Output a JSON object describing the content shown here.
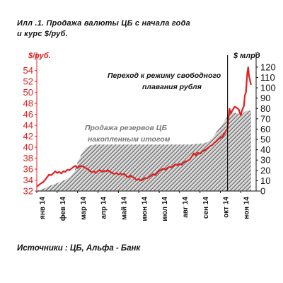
{
  "title": {
    "line1": "Илл .1.   Продажа валюты ЦБ с начала года",
    "line2": "и курс $/руб."
  },
  "source": "Источники : ЦБ, Альфа - Банк",
  "colors": {
    "rate_line": "#e02020",
    "reserves_area": "#808080",
    "float_marker": "#111111"
  },
  "chart_data": {
    "type": "area",
    "left_axis": {
      "unit": "$/руб.",
      "ticks": [
        "32",
        "34",
        "36",
        "38",
        "40",
        "42",
        "44",
        "46",
        "48",
        "50",
        "52",
        "54"
      ],
      "ylim": [
        32,
        55
      ]
    },
    "right_axis": {
      "unit": "$ млрд",
      "ticks": [
        "0",
        "10",
        "20",
        "30",
        "40",
        "50",
        "60",
        "70",
        "80",
        "90",
        "100",
        "110",
        "120"
      ],
      "ylim": [
        0,
        122
      ]
    },
    "x_labels": [
      "янв 14",
      "фев 14",
      "мар 14",
      "апр 14",
      "май 14",
      "июн 14",
      "июл 14",
      "авг 14",
      "сен 14",
      "окт 14",
      "ноя 14"
    ],
    "x_range": [
      0,
      10.75
    ],
    "annotations": {
      "float_regime": "Переход к режиму свободного плавания рубля",
      "float_regime_line1": "Переход к режиму свободного",
      "float_regime_line2": "плавания рубля",
      "float_regime_x": 9.35,
      "reserves_label_line1": "Продажа резервов ЦБ",
      "reserves_label_line2": "накопленным итогом"
    },
    "series": [
      {
        "name": "$/руб.",
        "axis": "left",
        "style": "line",
        "points": [
          [
            0.0,
            32.8
          ],
          [
            0.1,
            33.1
          ],
          [
            0.2,
            33.4
          ],
          [
            0.3,
            33.6
          ],
          [
            0.4,
            34.0
          ],
          [
            0.5,
            34.5
          ],
          [
            0.6,
            35.0
          ],
          [
            0.7,
            34.9
          ],
          [
            0.8,
            35.2
          ],
          [
            0.9,
            35.6
          ],
          [
            1.0,
            35.3
          ],
          [
            1.1,
            35.5
          ],
          [
            1.2,
            35.2
          ],
          [
            1.3,
            35.6
          ],
          [
            1.4,
            35.5
          ],
          [
            1.5,
            35.9
          ],
          [
            1.6,
            35.8
          ],
          [
            1.7,
            36.1
          ],
          [
            1.8,
            36.4
          ],
          [
            1.9,
            36.6
          ],
          [
            2.0,
            36.2
          ],
          [
            2.1,
            36.5
          ],
          [
            2.2,
            36.6
          ],
          [
            2.3,
            36.4
          ],
          [
            2.4,
            36.2
          ],
          [
            2.5,
            36.0
          ],
          [
            2.6,
            35.7
          ],
          [
            2.7,
            35.4
          ],
          [
            2.8,
            35.6
          ],
          [
            2.9,
            35.3
          ],
          [
            3.0,
            35.7
          ],
          [
            3.1,
            35.8
          ],
          [
            3.2,
            35.5
          ],
          [
            3.3,
            35.7
          ],
          [
            3.4,
            35.6
          ],
          [
            3.5,
            35.8
          ],
          [
            3.6,
            35.5
          ],
          [
            3.7,
            35.3
          ],
          [
            3.8,
            35.1
          ],
          [
            3.9,
            35.3
          ],
          [
            4.0,
            35.0
          ],
          [
            4.1,
            35.2
          ],
          [
            4.2,
            35.0
          ],
          [
            4.3,
            35.1
          ],
          [
            4.4,
            34.7
          ],
          [
            4.5,
            34.5
          ],
          [
            4.6,
            34.8
          ],
          [
            4.7,
            34.6
          ],
          [
            4.8,
            34.3
          ],
          [
            4.9,
            34.0
          ],
          [
            5.0,
            34.2
          ],
          [
            5.1,
            33.9
          ],
          [
            5.2,
            34.1
          ],
          [
            5.3,
            34.4
          ],
          [
            5.4,
            34.3
          ],
          [
            5.5,
            34.6
          ],
          [
            5.6,
            34.8
          ],
          [
            5.7,
            35.1
          ],
          [
            5.8,
            34.9
          ],
          [
            5.9,
            35.3
          ],
          [
            6.0,
            35.7
          ],
          [
            6.1,
            35.9
          ],
          [
            6.2,
            36.1
          ],
          [
            6.3,
            35.9
          ],
          [
            6.4,
            36.2
          ],
          [
            6.5,
            36.4
          ],
          [
            6.6,
            36.3
          ],
          [
            6.7,
            36.6
          ],
          [
            6.8,
            36.9
          ],
          [
            6.9,
            36.7
          ],
          [
            7.0,
            37.0
          ],
          [
            7.1,
            36.8
          ],
          [
            7.2,
            37.2
          ],
          [
            7.3,
            37.4
          ],
          [
            7.4,
            37.5
          ],
          [
            7.5,
            37.8
          ],
          [
            7.6,
            38.3
          ],
          [
            7.7,
            38.9
          ],
          [
            7.8,
            38.5
          ],
          [
            7.9,
            39.0
          ],
          [
            8.0,
            38.8
          ],
          [
            8.1,
            39.2
          ],
          [
            8.2,
            39.4
          ],
          [
            8.3,
            39.6
          ],
          [
            8.4,
            39.9
          ],
          [
            8.5,
            40.2
          ],
          [
            8.6,
            40.4
          ],
          [
            8.7,
            40.8
          ],
          [
            8.8,
            41.1
          ],
          [
            8.9,
            41.5
          ],
          [
            9.0,
            41.7
          ],
          [
            9.1,
            41.9
          ],
          [
            9.2,
            42.5
          ],
          [
            9.3,
            43.2
          ],
          [
            9.35,
            43.3
          ],
          [
            9.4,
            45.5
          ],
          [
            9.45,
            47.0
          ],
          [
            9.5,
            46.2
          ],
          [
            9.6,
            46.8
          ],
          [
            9.7,
            47.4
          ],
          [
            9.8,
            47.2
          ],
          [
            9.9,
            46.9
          ],
          [
            9.95,
            46.3
          ],
          [
            10.0,
            45.8
          ],
          [
            10.05,
            46.6
          ],
          [
            10.1,
            47.1
          ],
          [
            10.15,
            47.5
          ],
          [
            10.2,
            49.5
          ],
          [
            10.25,
            50.0
          ],
          [
            10.28,
            51.5
          ],
          [
            10.32,
            53.6
          ],
          [
            10.36,
            54.6
          ],
          [
            10.4,
            53.1
          ],
          [
            10.45,
            52.2
          ],
          [
            10.5,
            51.4
          ]
        ]
      },
      {
        "name": "Продажа резервов ЦБ накопленным итогом",
        "axis": "right",
        "style": "area",
        "points": [
          [
            0.0,
            0
          ],
          [
            0.3,
            2
          ],
          [
            0.6,
            5
          ],
          [
            0.9,
            7
          ],
          [
            1.2,
            9
          ],
          [
            1.5,
            12
          ],
          [
            1.7,
            15
          ],
          [
            1.85,
            19
          ],
          [
            2.0,
            28
          ],
          [
            2.2,
            36
          ],
          [
            2.4,
            42
          ],
          [
            2.6,
            44
          ],
          [
            2.8,
            45
          ],
          [
            3.5,
            45
          ],
          [
            5.0,
            45
          ],
          [
            6.5,
            45
          ],
          [
            7.5,
            45
          ],
          [
            8.0,
            46
          ],
          [
            8.2,
            46
          ],
          [
            8.4,
            48
          ],
          [
            8.6,
            51
          ],
          [
            8.8,
            57
          ],
          [
            9.0,
            62
          ],
          [
            9.2,
            68
          ],
          [
            9.4,
            74
          ],
          [
            9.5,
            76
          ],
          [
            9.7,
            76
          ],
          [
            9.9,
            75
          ],
          [
            10.05,
            74
          ],
          [
            10.15,
            76
          ],
          [
            10.3,
            78
          ],
          [
            10.45,
            78
          ],
          [
            10.5,
            78
          ]
        ]
      }
    ]
  }
}
